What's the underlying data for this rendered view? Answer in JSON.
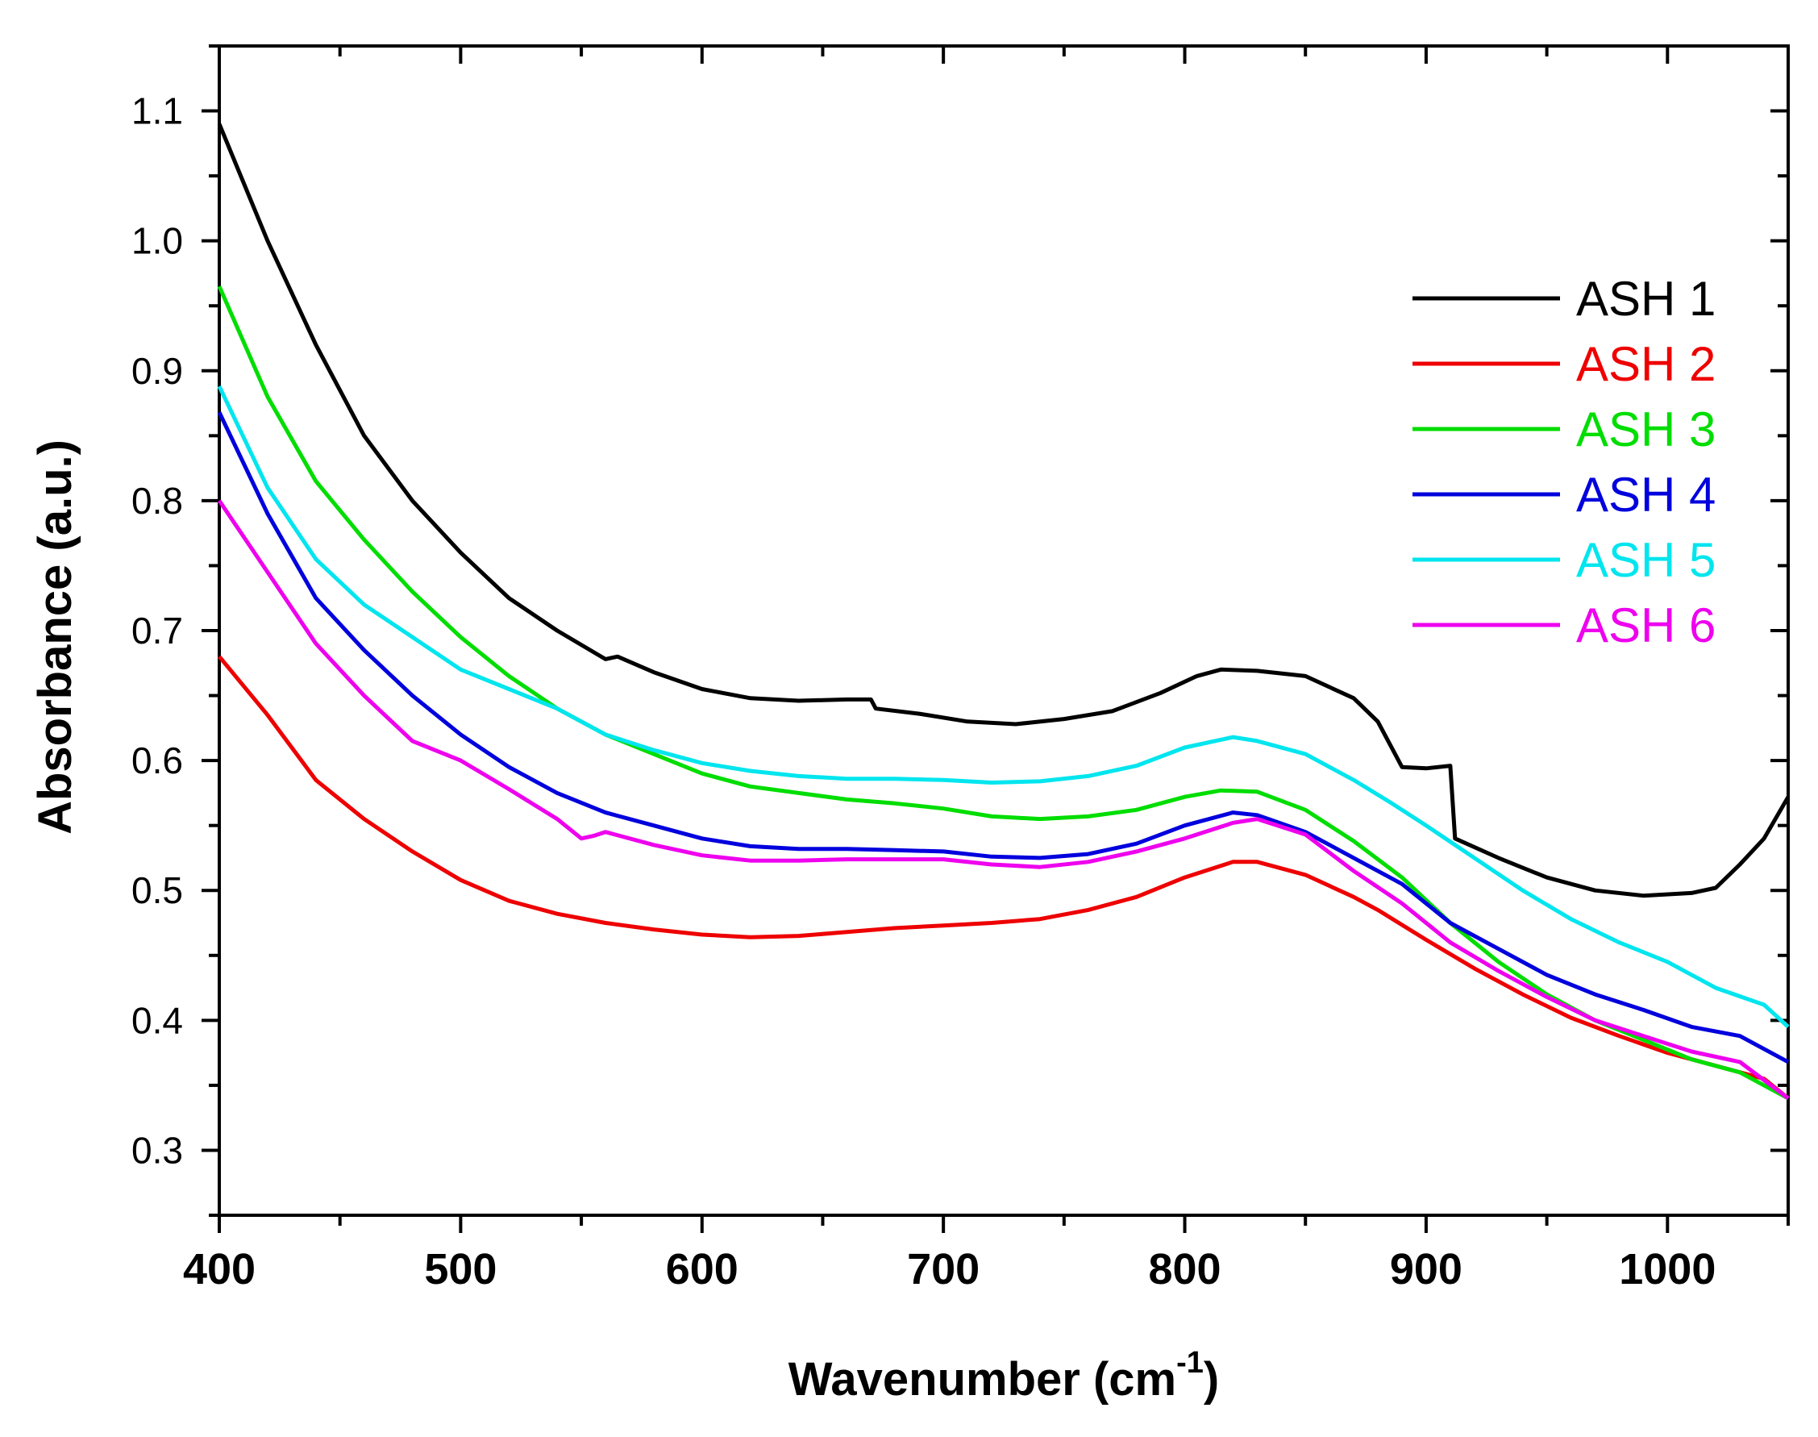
{
  "chart_data": {
    "type": "line",
    "title": "",
    "xlabel": "Wavenumber (cm",
    "xlabel_superscript": "-1",
    "xlabel_suffix": ")",
    "ylabel": "Absorbance (a.u.)",
    "xlim": [
      400,
      1050
    ],
    "ylim": [
      0.25,
      1.15
    ],
    "x_ticks": [
      400,
      500,
      600,
      700,
      800,
      900,
      1000
    ],
    "x_tick_labels": [
      "400",
      "500",
      "600",
      "700",
      "800",
      "900",
      "1000"
    ],
    "y_ticks": [
      0.3,
      0.4,
      0.5,
      0.6,
      0.7,
      0.8,
      0.9,
      1.0,
      1.1
    ],
    "y_tick_labels": [
      "0.3",
      "0.4",
      "0.5",
      "0.6",
      "0.7",
      "0.8",
      "0.9",
      "1.0",
      "1.1"
    ],
    "grid": false,
    "legend_position": "top-right",
    "series": [
      {
        "name": "ASH 1",
        "color": "#000000",
        "points": [
          [
            400,
            1.09
          ],
          [
            420,
            1.0
          ],
          [
            440,
            0.92
          ],
          [
            460,
            0.85
          ],
          [
            480,
            0.8
          ],
          [
            500,
            0.76
          ],
          [
            520,
            0.725
          ],
          [
            540,
            0.7
          ],
          [
            560,
            0.678
          ],
          [
            565,
            0.68
          ],
          [
            580,
            0.668
          ],
          [
            600,
            0.655
          ],
          [
            620,
            0.648
          ],
          [
            640,
            0.646
          ],
          [
            660,
            0.647
          ],
          [
            670,
            0.647
          ],
          [
            672,
            0.64
          ],
          [
            690,
            0.636
          ],
          [
            710,
            0.63
          ],
          [
            730,
            0.628
          ],
          [
            750,
            0.632
          ],
          [
            770,
            0.638
          ],
          [
            790,
            0.652
          ],
          [
            805,
            0.665
          ],
          [
            815,
            0.67
          ],
          [
            830,
            0.669
          ],
          [
            850,
            0.665
          ],
          [
            870,
            0.648
          ],
          [
            880,
            0.63
          ],
          [
            890,
            0.595
          ],
          [
            900,
            0.594
          ],
          [
            910,
            0.596
          ],
          [
            912,
            0.54
          ],
          [
            930,
            0.525
          ],
          [
            950,
            0.51
          ],
          [
            970,
            0.5
          ],
          [
            990,
            0.496
          ],
          [
            1010,
            0.498
          ],
          [
            1020,
            0.502
          ],
          [
            1030,
            0.52
          ],
          [
            1040,
            0.54
          ],
          [
            1050,
            0.572
          ]
        ]
      },
      {
        "name": "ASH 2",
        "color": "#ee0000",
        "points": [
          [
            400,
            0.68
          ],
          [
            420,
            0.635
          ],
          [
            440,
            0.585
          ],
          [
            460,
            0.555
          ],
          [
            480,
            0.53
          ],
          [
            500,
            0.508
          ],
          [
            520,
            0.492
          ],
          [
            540,
            0.482
          ],
          [
            560,
            0.475
          ],
          [
            580,
            0.47
          ],
          [
            600,
            0.466
          ],
          [
            620,
            0.464
          ],
          [
            640,
            0.465
          ],
          [
            660,
            0.468
          ],
          [
            680,
            0.471
          ],
          [
            700,
            0.473
          ],
          [
            720,
            0.475
          ],
          [
            740,
            0.478
          ],
          [
            760,
            0.485
          ],
          [
            780,
            0.495
          ],
          [
            800,
            0.51
          ],
          [
            820,
            0.522
          ],
          [
            830,
            0.522
          ],
          [
            850,
            0.512
          ],
          [
            870,
            0.495
          ],
          [
            880,
            0.485
          ],
          [
            900,
            0.462
          ],
          [
            920,
            0.44
          ],
          [
            940,
            0.42
          ],
          [
            960,
            0.402
          ],
          [
            980,
            0.388
          ],
          [
            1000,
            0.375
          ],
          [
            1020,
            0.365
          ],
          [
            1040,
            0.355
          ],
          [
            1050,
            0.34
          ]
        ]
      },
      {
        "name": "ASH 3",
        "color": "#00dd00",
        "points": [
          [
            400,
            0.965
          ],
          [
            420,
            0.88
          ],
          [
            440,
            0.815
          ],
          [
            460,
            0.77
          ],
          [
            480,
            0.73
          ],
          [
            500,
            0.695
          ],
          [
            520,
            0.665
          ],
          [
            540,
            0.64
          ],
          [
            560,
            0.62
          ],
          [
            580,
            0.605
          ],
          [
            600,
            0.59
          ],
          [
            620,
            0.58
          ],
          [
            640,
            0.575
          ],
          [
            660,
            0.57
          ],
          [
            680,
            0.567
          ],
          [
            700,
            0.563
          ],
          [
            720,
            0.557
          ],
          [
            740,
            0.555
          ],
          [
            760,
            0.557
          ],
          [
            780,
            0.562
          ],
          [
            800,
            0.572
          ],
          [
            815,
            0.577
          ],
          [
            830,
            0.576
          ],
          [
            850,
            0.562
          ],
          [
            870,
            0.538
          ],
          [
            890,
            0.51
          ],
          [
            910,
            0.475
          ],
          [
            930,
            0.445
          ],
          [
            950,
            0.42
          ],
          [
            970,
            0.4
          ],
          [
            990,
            0.385
          ],
          [
            1010,
            0.37
          ],
          [
            1030,
            0.36
          ],
          [
            1050,
            0.34
          ]
        ]
      },
      {
        "name": "ASH 4",
        "color": "#0000dd",
        "points": [
          [
            400,
            0.868
          ],
          [
            420,
            0.79
          ],
          [
            440,
            0.725
          ],
          [
            460,
            0.685
          ],
          [
            480,
            0.65
          ],
          [
            500,
            0.62
          ],
          [
            520,
            0.595
          ],
          [
            540,
            0.575
          ],
          [
            560,
            0.56
          ],
          [
            580,
            0.55
          ],
          [
            600,
            0.54
          ],
          [
            620,
            0.534
          ],
          [
            640,
            0.532
          ],
          [
            660,
            0.532
          ],
          [
            680,
            0.531
          ],
          [
            700,
            0.53
          ],
          [
            720,
            0.526
          ],
          [
            740,
            0.525
          ],
          [
            760,
            0.528
          ],
          [
            780,
            0.536
          ],
          [
            800,
            0.55
          ],
          [
            820,
            0.56
          ],
          [
            830,
            0.558
          ],
          [
            850,
            0.545
          ],
          [
            870,
            0.525
          ],
          [
            890,
            0.505
          ],
          [
            910,
            0.475
          ],
          [
            930,
            0.455
          ],
          [
            950,
            0.435
          ],
          [
            970,
            0.42
          ],
          [
            990,
            0.408
          ],
          [
            1010,
            0.395
          ],
          [
            1030,
            0.388
          ],
          [
            1050,
            0.368
          ]
        ]
      },
      {
        "name": "ASH 5",
        "color": "#00e5ee",
        "points": [
          [
            400,
            0.888
          ],
          [
            420,
            0.81
          ],
          [
            440,
            0.755
          ],
          [
            460,
            0.72
          ],
          [
            480,
            0.695
          ],
          [
            500,
            0.67
          ],
          [
            520,
            0.655
          ],
          [
            540,
            0.64
          ],
          [
            560,
            0.62
          ],
          [
            580,
            0.608
          ],
          [
            600,
            0.598
          ],
          [
            620,
            0.592
          ],
          [
            640,
            0.588
          ],
          [
            660,
            0.586
          ],
          [
            680,
            0.586
          ],
          [
            700,
            0.585
          ],
          [
            720,
            0.583
          ],
          [
            740,
            0.584
          ],
          [
            760,
            0.588
          ],
          [
            780,
            0.596
          ],
          [
            800,
            0.61
          ],
          [
            820,
            0.618
          ],
          [
            830,
            0.615
          ],
          [
            850,
            0.605
          ],
          [
            870,
            0.585
          ],
          [
            885,
            0.568
          ],
          [
            900,
            0.55
          ],
          [
            920,
            0.525
          ],
          [
            940,
            0.5
          ],
          [
            960,
            0.478
          ],
          [
            980,
            0.46
          ],
          [
            1000,
            0.445
          ],
          [
            1020,
            0.425
          ],
          [
            1040,
            0.412
          ],
          [
            1050,
            0.395
          ]
        ]
      },
      {
        "name": "ASH 6",
        "color": "#ee00ee",
        "points": [
          [
            400,
            0.8
          ],
          [
            420,
            0.745
          ],
          [
            440,
            0.69
          ],
          [
            460,
            0.65
          ],
          [
            480,
            0.615
          ],
          [
            500,
            0.6
          ],
          [
            520,
            0.578
          ],
          [
            540,
            0.555
          ],
          [
            550,
            0.54
          ],
          [
            555,
            0.542
          ],
          [
            560,
            0.545
          ],
          [
            580,
            0.535
          ],
          [
            600,
            0.527
          ],
          [
            620,
            0.523
          ],
          [
            640,
            0.523
          ],
          [
            660,
            0.524
          ],
          [
            680,
            0.524
          ],
          [
            700,
            0.524
          ],
          [
            720,
            0.52
          ],
          [
            740,
            0.518
          ],
          [
            760,
            0.522
          ],
          [
            780,
            0.53
          ],
          [
            800,
            0.54
          ],
          [
            820,
            0.552
          ],
          [
            830,
            0.555
          ],
          [
            850,
            0.543
          ],
          [
            870,
            0.515
          ],
          [
            890,
            0.49
          ],
          [
            910,
            0.46
          ],
          [
            930,
            0.438
          ],
          [
            950,
            0.418
          ],
          [
            970,
            0.4
          ],
          [
            990,
            0.388
          ],
          [
            1010,
            0.376
          ],
          [
            1030,
            0.368
          ],
          [
            1050,
            0.34
          ]
        ]
      }
    ]
  }
}
